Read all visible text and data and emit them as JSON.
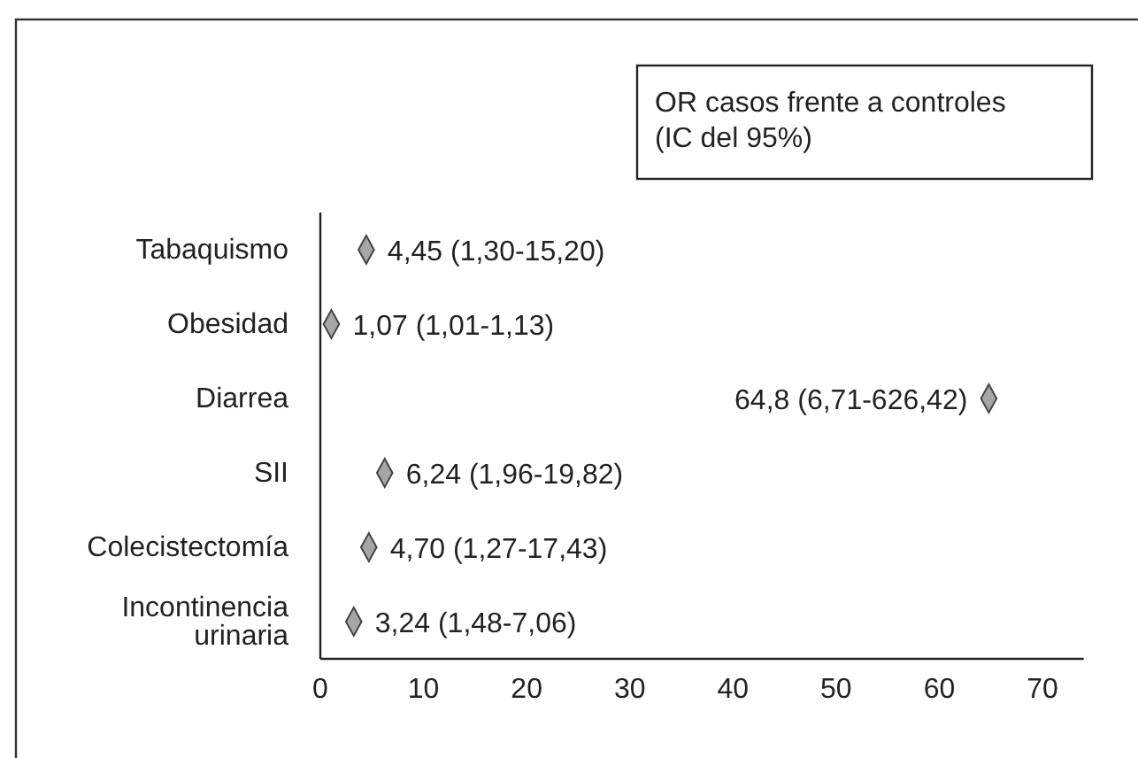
{
  "chart_data": {
    "type": "scatter",
    "orientation": "horizontal",
    "categories": [
      "Tabaquismo",
      "Obesidad",
      "Diarrea",
      "SII",
      "Colecistectomía",
      "Incontinencia urinaria"
    ],
    "values": [
      4.45,
      1.07,
      64.8,
      6.24,
      4.7,
      3.24
    ],
    "value_labels": [
      "4,45 (1,30-15,20)",
      "1,07 (1,01-1,13)",
      "64,8 (6,71-626,42)",
      "6,24 (1,96-19,82)",
      "4,70 (1,27-17,43)",
      "3,24 (1,48-7,06)"
    ],
    "color": "#a6a6a6",
    "marker": "diamond",
    "grid": false,
    "xlim": [
      0,
      74
    ],
    "xticks": [
      0,
      10,
      20,
      30,
      40,
      50,
      60,
      70
    ],
    "annotations": [
      "OR casos frente a controles (IC del 95%)"
    ]
  }
}
